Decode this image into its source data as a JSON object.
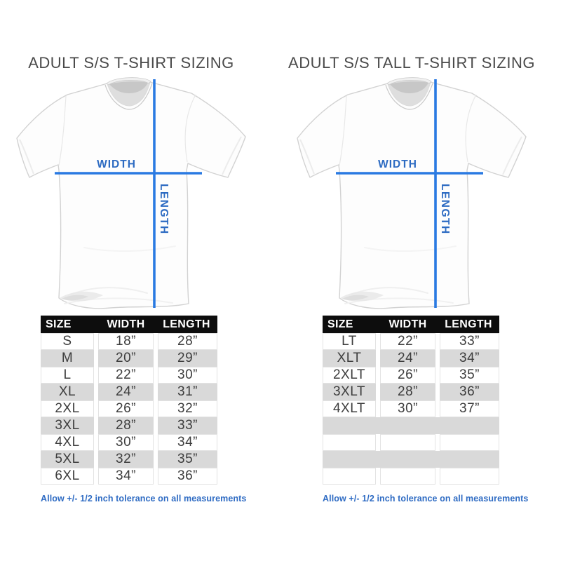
{
  "colors": {
    "background": "#ffffff",
    "title_text": "#4a4a4a",
    "header_bg": "#0d0d0d",
    "header_text": "#ffffff",
    "row_alt_gray": "#d9d9d9",
    "data_text": "#3d3d3d",
    "measure_line_blue": "#2a7ae2",
    "measure_label_blue": "#2d6bc2",
    "note_blue": "#2e6bc3"
  },
  "panels": [
    {
      "title": "ADULT S/S T-SHIRT SIZING",
      "shirt_labels": {
        "width": "WIDTH",
        "length": "LENGTH"
      },
      "table": {
        "headers": [
          "SIZE",
          "WIDTH",
          "LENGTH"
        ],
        "rows": [
          [
            "S",
            "18”",
            "28”"
          ],
          [
            "M",
            "20”",
            "29”"
          ],
          [
            "L",
            "22”",
            "30”"
          ],
          [
            "XL",
            "24”",
            "31”"
          ],
          [
            "2XL",
            "26”",
            "32”"
          ],
          [
            "3XL",
            "28”",
            "33”"
          ],
          [
            "4XL",
            "30”",
            "34”"
          ],
          [
            "5XL",
            "32”",
            "35”"
          ],
          [
            "6XL",
            "34”",
            "36”"
          ]
        ],
        "empty_rows": 0
      },
      "note": "Allow +/- 1/2 inch tolerance on all measurements"
    },
    {
      "title": "ADULT S/S TALL T-SHIRT SIZING",
      "shirt_labels": {
        "width": "WIDTH",
        "length": "LENGTH"
      },
      "table": {
        "headers": [
          "SIZE",
          "WIDTH",
          "LENGTH"
        ],
        "rows": [
          [
            "LT",
            "22”",
            "33”"
          ],
          [
            "XLT",
            "24”",
            "34”"
          ],
          [
            "2XLT",
            "26”",
            "35”"
          ],
          [
            "3XLT",
            "28”",
            "36”"
          ],
          [
            "4XLT",
            "30”",
            "37”"
          ]
        ],
        "empty_rows": 4
      },
      "note": "Allow +/- 1/2 inch tolerance on all measurements"
    }
  ],
  "chart_data": [
    {
      "type": "table",
      "title": "ADULT S/S T-SHIRT SIZING",
      "columns": [
        "SIZE",
        "WIDTH",
        "LENGTH"
      ],
      "rows": [
        [
          "S",
          "18”",
          "28”"
        ],
        [
          "M",
          "20”",
          "29”"
        ],
        [
          "L",
          "22”",
          "30”"
        ],
        [
          "XL",
          "24”",
          "31”"
        ],
        [
          "2XL",
          "26”",
          "32”"
        ],
        [
          "3XL",
          "28”",
          "33”"
        ],
        [
          "4XL",
          "30”",
          "34”"
        ],
        [
          "5XL",
          "32”",
          "35”"
        ],
        [
          "6XL",
          "34”",
          "36”"
        ]
      ],
      "footnote": "Allow +/- 1/2 inch tolerance on all measurements"
    },
    {
      "type": "table",
      "title": "ADULT S/S TALL T-SHIRT SIZING",
      "columns": [
        "SIZE",
        "WIDTH",
        "LENGTH"
      ],
      "rows": [
        [
          "LT",
          "22”",
          "33”"
        ],
        [
          "XLT",
          "24”",
          "34”"
        ],
        [
          "2XLT",
          "26”",
          "35”"
        ],
        [
          "3XLT",
          "28”",
          "36”"
        ],
        [
          "4XLT",
          "30”",
          "37”"
        ]
      ],
      "footnote": "Allow +/- 1/2 inch tolerance on all measurements"
    }
  ]
}
